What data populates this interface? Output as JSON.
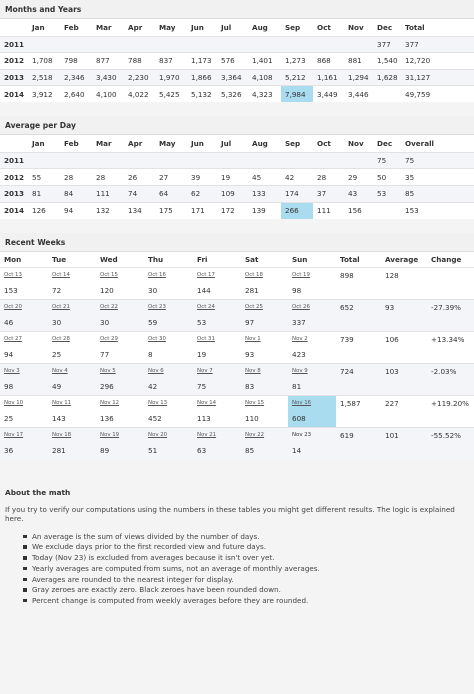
{
  "months": {
    "title": "Months and Years",
    "headers": [
      "",
      "Jan",
      "Feb",
      "Mar",
      "Apr",
      "May",
      "Jun",
      "Jul",
      "Aug",
      "Sep",
      "Oct",
      "Nov",
      "Dec",
      "Total"
    ],
    "rows": [
      [
        "2011",
        "",
        "",
        "",
        "",
        "",
        "",
        "",
        "",
        "",
        "",
        "",
        "377",
        "377"
      ],
      [
        "2012",
        "1,708",
        "798",
        "877",
        "788",
        "837",
        "1,173",
        "576",
        "1,401",
        "1,273",
        "868",
        "881",
        "1,540",
        "12,720"
      ],
      [
        "2013",
        "2,518",
        "2,346",
        "3,430",
        "2,230",
        "1,970",
        "1,866",
        "3,364",
        "4,108",
        "5,212",
        "1,161",
        "1,294",
        "1,628",
        "31,127"
      ],
      [
        "2014",
        "3,912",
        "2,640",
        "4,100",
        "4,022",
        "5,425",
        "5,132",
        "5,326",
        "4,323",
        "7,984",
        "3,449",
        "3,446",
        "",
        "49,759"
      ]
    ]
  },
  "average": {
    "title": "Average per Day",
    "headers": [
      "",
      "Jan",
      "Feb",
      "Mar",
      "Apr",
      "May",
      "Jun",
      "Jul",
      "Aug",
      "Sep",
      "Oct",
      "Nov",
      "Dec",
      "Overall"
    ],
    "rows": [
      [
        "2011",
        "",
        "",
        "",
        "",
        "",
        "",
        "",
        "",
        "",
        "",
        "",
        "75",
        "75"
      ],
      [
        "2012",
        "55",
        "28",
        "28",
        "26",
        "27",
        "39",
        "19",
        "45",
        "42",
        "28",
        "29",
        "50",
        "35"
      ],
      [
        "2013",
        "81",
        "84",
        "111",
        "74",
        "64",
        "62",
        "109",
        "133",
        "174",
        "37",
        "43",
        "53",
        "85"
      ],
      [
        "2014",
        "126",
        "94",
        "132",
        "134",
        "175",
        "171",
        "172",
        "139",
        "266",
        "111",
        "156",
        "",
        "153"
      ]
    ]
  },
  "weeks": {
    "title": "Recent Weeks",
    "headers": [
      "Mon",
      "Tue",
      "Wed",
      "Thu",
      "Fri",
      "Sat",
      "Sun",
      "Total",
      "Average",
      "Change"
    ],
    "rows": [
      {
        "dates": [
          "Oct 13",
          "Oct 14",
          "Oct 15",
          "Oct 16",
          "Oct 17",
          "Oct 18",
          "Oct 19"
        ],
        "values": [
          "153",
          "72",
          "120",
          "30",
          "144",
          "281",
          "98"
        ],
        "total": "898",
        "average": "128",
        "change": ""
      },
      {
        "dates": [
          "Oct 20",
          "Oct 21",
          "Oct 22",
          "Oct 23",
          "Oct 24",
          "Oct 25",
          "Oct 26"
        ],
        "values": [
          "46",
          "30",
          "30",
          "59",
          "53",
          "97",
          "337"
        ],
        "total": "652",
        "average": "93",
        "change": "-27.39%"
      },
      {
        "dates": [
          "Oct 27",
          "Oct 28",
          "Oct 29",
          "Oct 30",
          "Oct 31",
          "Nov 1",
          "Nov 2"
        ],
        "values": [
          "94",
          "25",
          "77",
          "8",
          "19",
          "93",
          "423"
        ],
        "total": "739",
        "average": "106",
        "change": "+13.34%"
      },
      {
        "dates": [
          "Nov 3",
          "Nov 4",
          "Nov 5",
          "Nov 6",
          "Nov 7",
          "Nov 8",
          "Nov 9"
        ],
        "values": [
          "98",
          "49",
          "296",
          "42",
          "75",
          "83",
          "81"
        ],
        "total": "724",
        "average": "103",
        "change": "-2.03%"
      },
      {
        "dates": [
          "Nov 10",
          "Nov 11",
          "Nov 12",
          "Nov 13",
          "Nov 14",
          "Nov 15",
          "Nov 16"
        ],
        "values": [
          "25",
          "143",
          "136",
          "452",
          "113",
          "110",
          "608"
        ],
        "total": "1,587",
        "average": "227",
        "change": "+119.20%"
      },
      {
        "dates": [
          "Nov 17",
          "Nov 18",
          "Nov 19",
          "Nov 20",
          "Nov 21",
          "Nov 22",
          "Nov 23"
        ],
        "values": [
          "36",
          "281",
          "89",
          "51",
          "63",
          "85",
          "14"
        ],
        "total": "619",
        "average": "101",
        "change": "-55.52%"
      }
    ]
  },
  "about": {
    "title": "About the math",
    "intro": "If you try to verify our computations using the numbers in these tables you might get different results. The logic is explained here.",
    "bullets": [
      "An average is the sum of views divided by the number of days.",
      "We exclude days prior to the first recorded view and future days.",
      "Today (Nov 23) is excluded from averages because it isn't over yet.",
      "Yearly averages are computed from sums, not an average of monthly averages.",
      "Averages are rounded to the nearest integer for display.",
      "Gray zeroes are exactly zero. Black zeroes have been rounded down.",
      "Percent change is computed from weekly averages before they are rounded."
    ]
  },
  "colors": {
    "highlight": "#a9dcef",
    "positive": "#2e9e40",
    "negative": "#cc3333"
  }
}
